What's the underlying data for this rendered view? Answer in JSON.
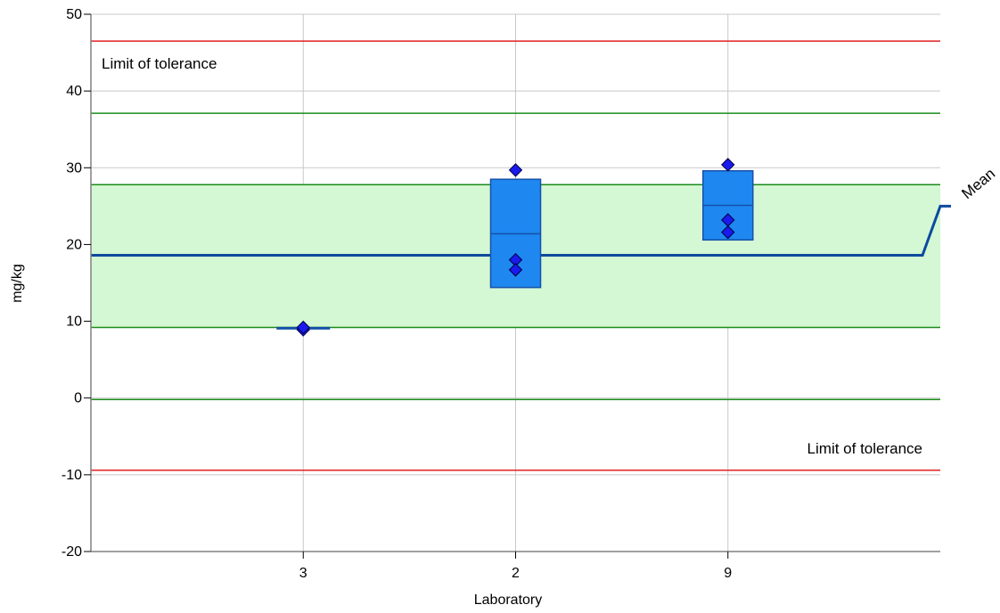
{
  "chart_data": {
    "type": "box",
    "title": "",
    "xlabel": "Laboratory",
    "ylabel": "mg/kg",
    "ylim": [
      -20,
      50
    ],
    "yticks": [
      -20,
      -10,
      0,
      10,
      20,
      30,
      40,
      50
    ],
    "grid": true,
    "categories": [
      "3",
      "2",
      "9"
    ],
    "mean": {
      "label": "Mean",
      "value": 18.6,
      "color": "#0d4a9c"
    },
    "tolerance_band": {
      "lower": 9.2,
      "upper": 27.8,
      "fill": "#d4f7d4",
      "color": "#1a8c1a"
    },
    "green_limits": [
      -0.2,
      37.1
    ],
    "limits_of_tolerance": {
      "lower": -9.4,
      "upper": 46.5,
      "color": "#e02020",
      "upper_label": "Limit of tolerance",
      "lower_label": "Limit of tolerance"
    },
    "boxes": [
      {
        "category": "3",
        "low": 9.1,
        "high": 9.1,
        "median": 9.1,
        "points": [
          8.9,
          9.2
        ]
      },
      {
        "category": "2",
        "low": 14.4,
        "high": 28.5,
        "median": 21.4,
        "points": [
          29.7,
          18.0,
          16.7
        ]
      },
      {
        "category": "9",
        "low": 20.6,
        "high": 29.6,
        "median": 25.1,
        "points": [
          30.4,
          23.2,
          21.6
        ]
      }
    ],
    "colors": {
      "box": "#1e88f0",
      "box_stroke": "#1551a8",
      "point": "#1a1aee",
      "grid": "#c8c8c8",
      "axis": "#808080"
    }
  }
}
